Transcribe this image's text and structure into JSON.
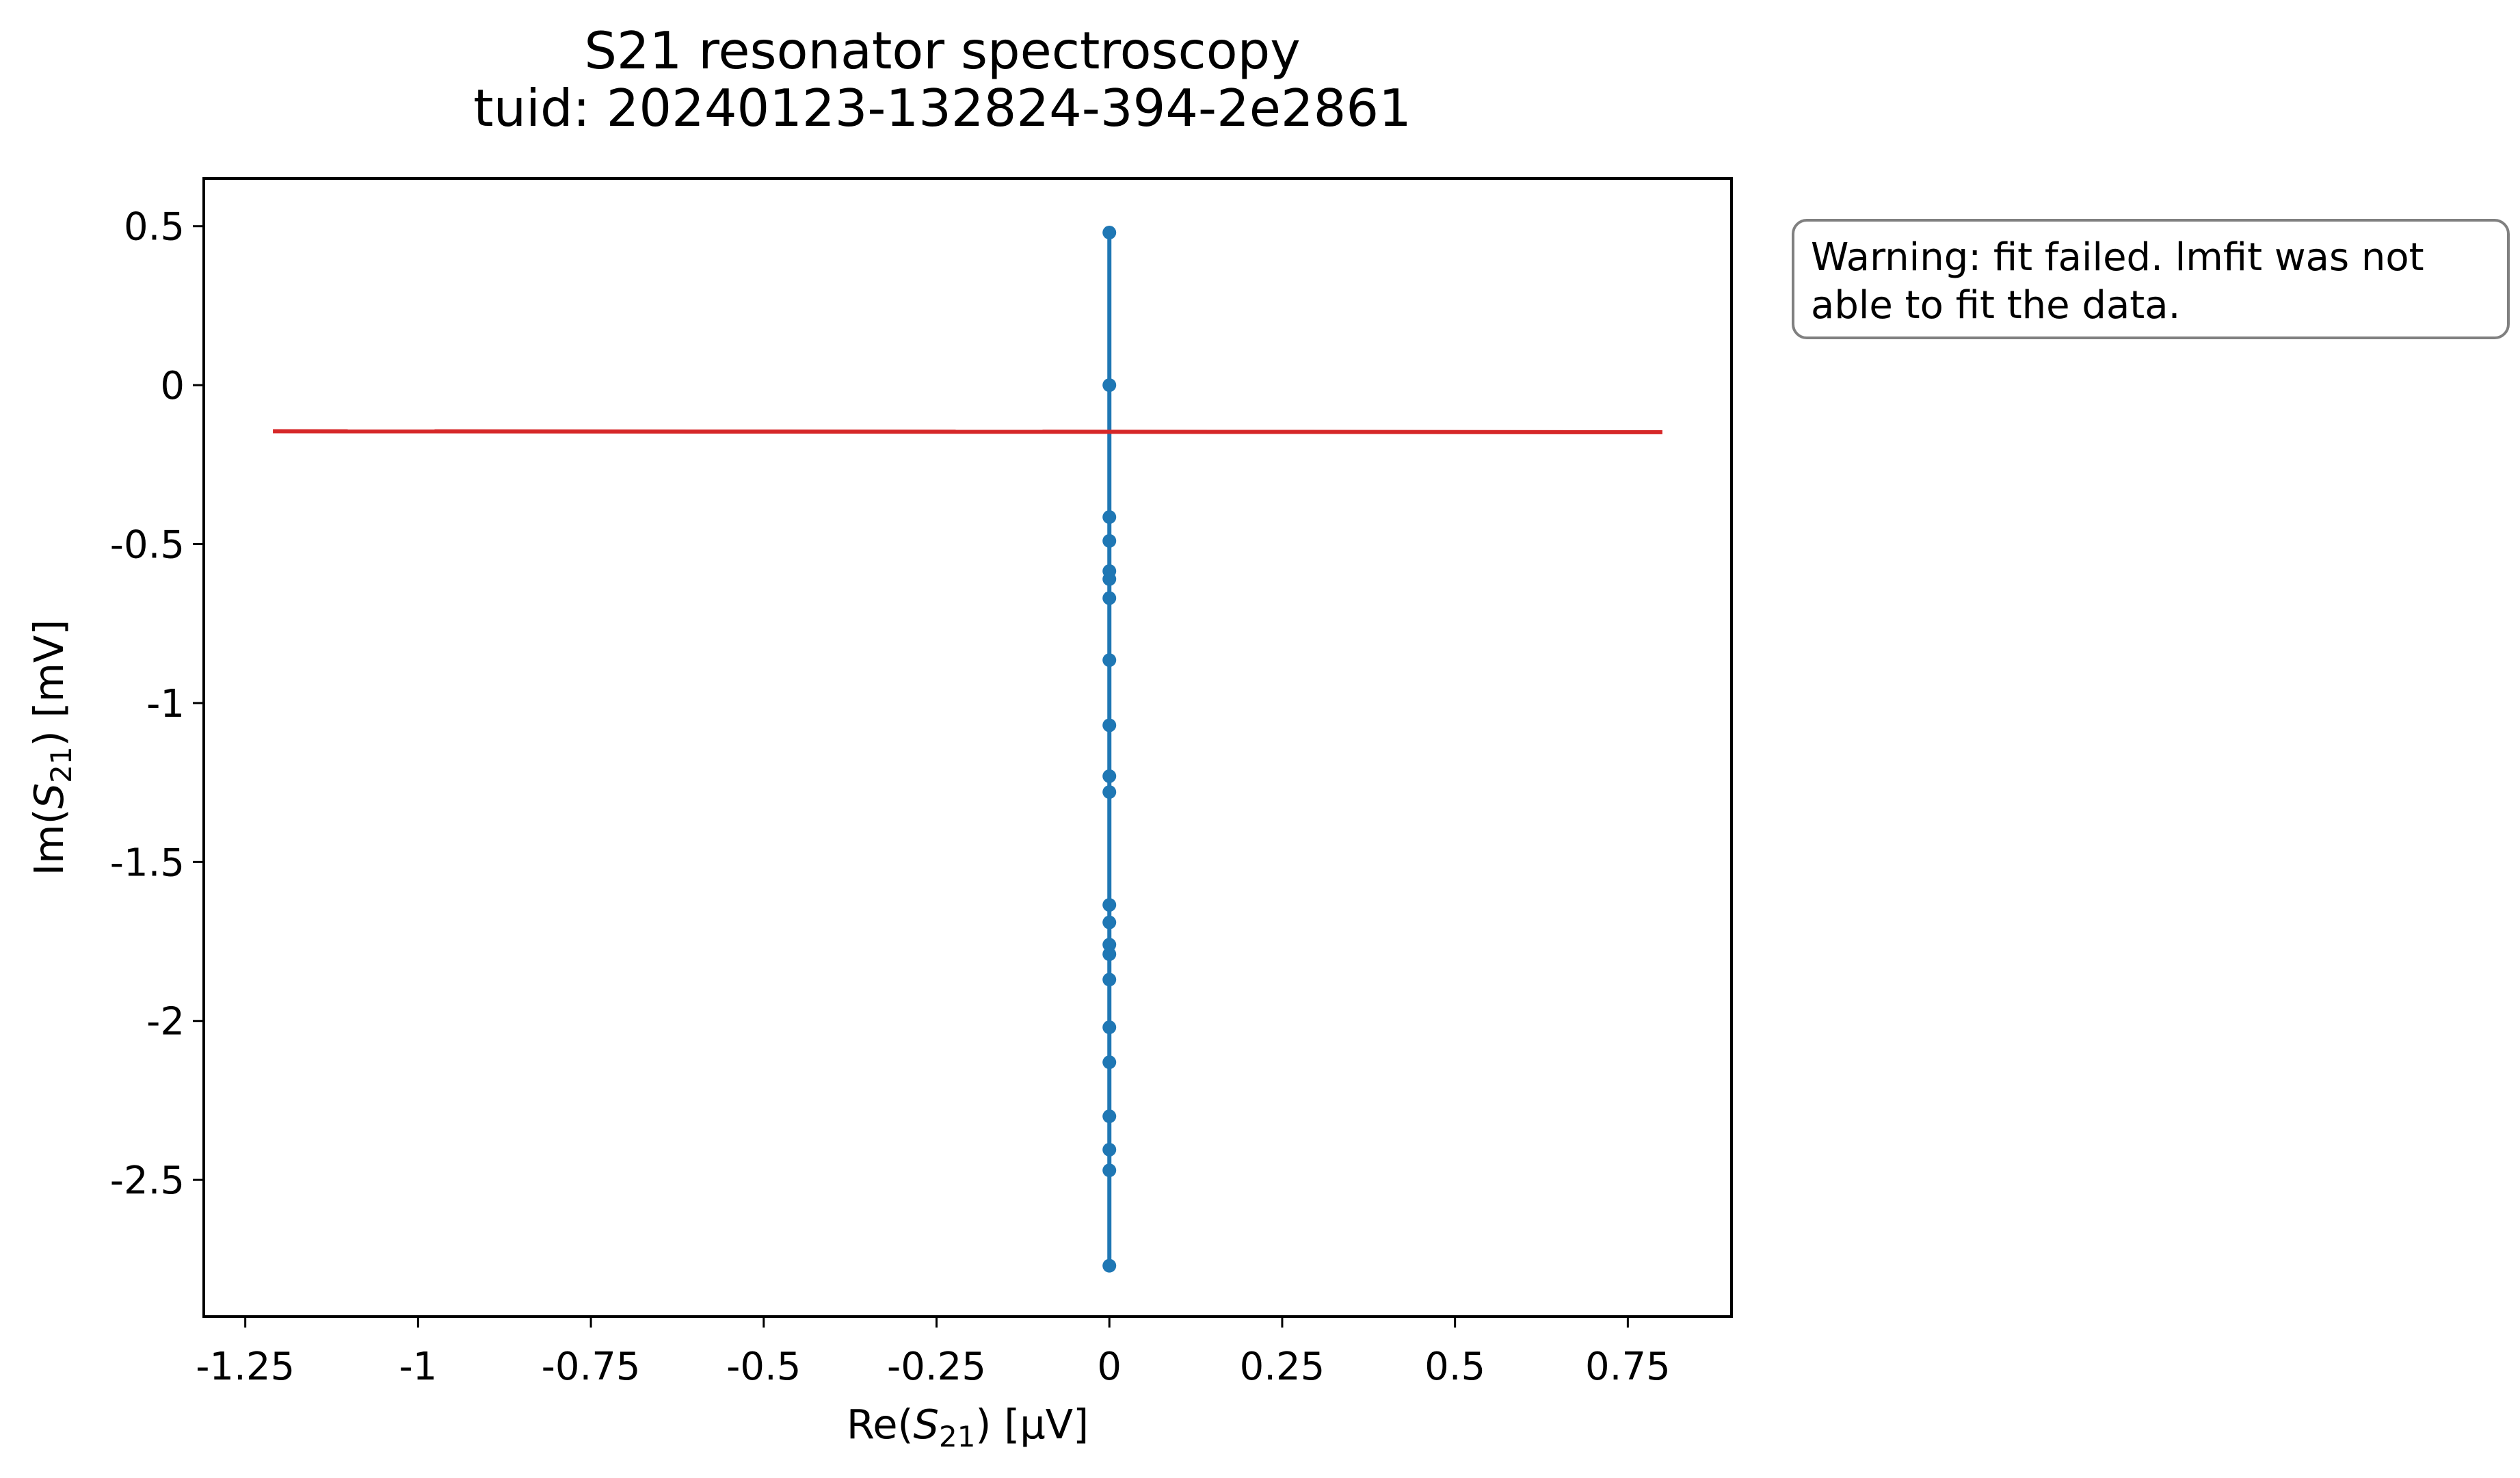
{
  "chart_data": {
    "type": "line",
    "title": "S21 resonator spectroscopy\ntuid: 20240123-132824-394-2e2861",
    "title_lines": [
      "S21 resonator spectroscopy",
      "tuid: 20240123-132824-394-2e2861"
    ],
    "xlabel": {
      "prefix": "Re(",
      "var": "S",
      "sub": "21",
      "suffix": ") [µV]"
    },
    "ylabel": {
      "prefix": "Im(",
      "var": "S",
      "sub": "21",
      "suffix": ") [mV]"
    },
    "xlim": [
      -1.31,
      0.9
    ],
    "ylim": [
      -2.93,
      0.65
    ],
    "x_ticks": [
      {
        "value": -1.25,
        "label": "-1.25"
      },
      {
        "value": -1,
        "label": "-1"
      },
      {
        "value": -0.75,
        "label": "-0.75"
      },
      {
        "value": -0.5,
        "label": "-0.5"
      },
      {
        "value": -0.25,
        "label": "-0.25"
      },
      {
        "value": 0,
        "label": "0"
      },
      {
        "value": 0.25,
        "label": "0.25"
      },
      {
        "value": 0.5,
        "label": "0.5"
      },
      {
        "value": 0.75,
        "label": "0.75"
      }
    ],
    "y_ticks": [
      {
        "value": 0.5,
        "label": "0.5"
      },
      {
        "value": 0,
        "label": "0"
      },
      {
        "value": -0.5,
        "label": "-0.5"
      },
      {
        "value": -1,
        "label": "-1"
      },
      {
        "value": -1.5,
        "label": "-1.5"
      },
      {
        "value": -2,
        "label": "-2"
      },
      {
        "value": -2.5,
        "label": "-2.5"
      }
    ],
    "grid": false,
    "legend": "none",
    "series": [
      {
        "style": "line-markers",
        "color": "#1f77b4",
        "points": [
          [
            0,
            0.48
          ],
          [
            0,
            0.0
          ],
          [
            0,
            -0.415
          ],
          [
            0,
            -0.49
          ],
          [
            0,
            -0.585
          ],
          [
            0,
            -0.61
          ],
          [
            0,
            -0.67
          ],
          [
            0,
            -0.865
          ],
          [
            0,
            -1.07
          ],
          [
            0,
            -1.23
          ],
          [
            0,
            -1.28
          ],
          [
            0,
            -1.635
          ],
          [
            0,
            -1.69
          ],
          [
            0,
            -1.76
          ],
          [
            0,
            -1.79
          ],
          [
            0,
            -1.87
          ],
          [
            0,
            -2.02
          ],
          [
            0,
            -2.13
          ],
          [
            0,
            -2.3
          ],
          [
            0,
            -2.405
          ],
          [
            0,
            -2.47
          ],
          [
            0,
            -2.77
          ]
        ]
      },
      {
        "style": "line",
        "color": "#d62728",
        "points": [
          [
            -1.21,
            -0.145
          ],
          [
            0.8,
            -0.148
          ]
        ]
      }
    ]
  },
  "warning": {
    "text": "Warning: fit failed. lmfit was not\nable to fit the data."
  }
}
